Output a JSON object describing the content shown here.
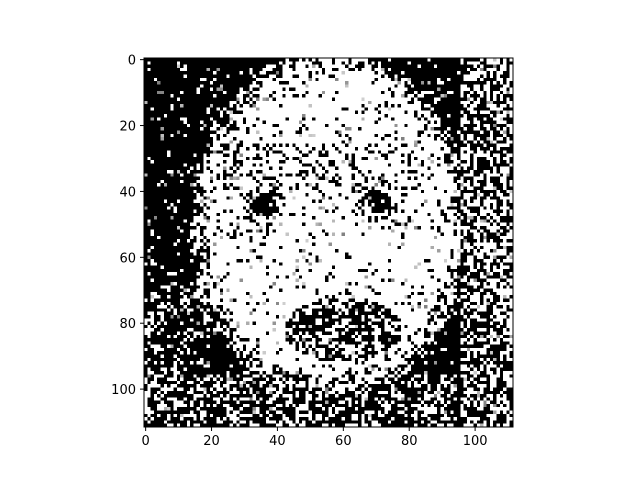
{
  "chart_data": {
    "type": "heatmap",
    "title": "",
    "xlabel": "",
    "ylabel": "",
    "colormap": "gray",
    "colors": {
      "low": "#000000",
      "high": "#ffffff",
      "frame": "#000000"
    },
    "image_size": [
      112,
      112
    ],
    "xlim": [
      -0.5,
      111.5
    ],
    "ylim": [
      111.5,
      -0.5
    ],
    "y_axis_inverted": true,
    "grid": false,
    "x_ticks": [
      0,
      20,
      40,
      60,
      80,
      100
    ],
    "y_ticks": [
      0,
      20,
      40,
      60,
      80,
      100
    ],
    "x_tick_labels": [
      "0",
      "20",
      "40",
      "60",
      "80",
      "100"
    ],
    "y_tick_labels": [
      "0",
      "20",
      "40",
      "60",
      "80",
      "100"
    ],
    "content": "noisy high-contrast grayscale image of a face (bright face region on dark background)",
    "face_features": {
      "face_center": [
        56,
        50
      ],
      "face_radii": [
        43,
        54
      ],
      "eyes": [
        [
          36,
          44
        ],
        [
          71,
          43
        ]
      ],
      "mouth_region": [
        60,
        82
      ]
    }
  }
}
